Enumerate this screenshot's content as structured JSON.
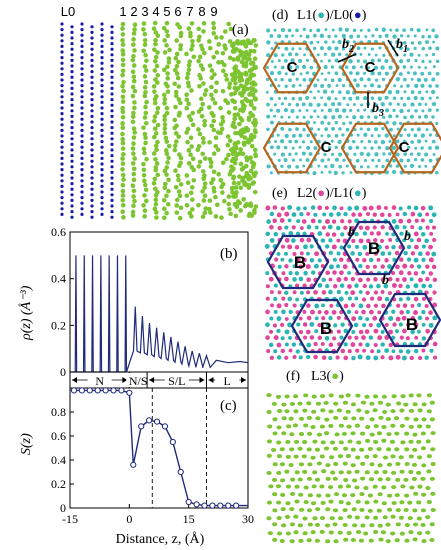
{
  "panel_a": {
    "tag": "(a)",
    "layer_labels": [
      "L0",
      "1",
      "2",
      "3",
      "4",
      "5",
      "6",
      "7",
      "8",
      "9"
    ],
    "colors": {
      "substrate": "#1a1aa8",
      "liquid": "#7cc531"
    }
  },
  "panel_d": {
    "tag": "(d)",
    "title_parts": [
      "L1(",
      ")/L0(",
      ")"
    ],
    "marker_colors": [
      "#2ab5b5",
      "#1a1aa8"
    ],
    "region_label": "C",
    "vectors": [
      "b",
      "b",
      "b"
    ],
    "vector_subs": [
      "2",
      "1",
      "3"
    ],
    "colors": {
      "atoms": "#2ab5b5",
      "outline": "#b5651d"
    }
  },
  "panel_e": {
    "tag": "(e)",
    "title_parts": [
      "L2(",
      ")/L1(",
      ")"
    ],
    "marker_colors": [
      "#e0479a",
      "#2ab5b5"
    ],
    "region_label": "B",
    "vectors": [
      "b",
      "b",
      "b"
    ],
    "colors": {
      "atoms_a": "#e0479a",
      "atoms_b": "#2ab5b5",
      "outline": "#1f2a7a",
      "vector": "#e07b1a"
    }
  },
  "panel_f": {
    "tag": "(f)",
    "title": "L3(",
    "title_end": ")",
    "marker_color": "#7cc531"
  },
  "chart_data": [
    {
      "type": "line",
      "tag": "(b)",
      "ylabel": "ρ(z) (Å⁻³)",
      "ylim": [
        0,
        0.6
      ],
      "yticks": [
        "0",
        "0.2",
        "0.4",
        "0.6"
      ],
      "xlim": [
        -15,
        30
      ],
      "color": "#1f2a7a",
      "peaks": {
        "z": [
          -13.5,
          -11.4,
          -9.3,
          -7.2,
          -5.1,
          -3.0,
          -0.9,
          1.5,
          3.3,
          5.1,
          6.9,
          8.7,
          10.5,
          12.3,
          14.1,
          15.9,
          17.7,
          19.5
        ],
        "height": [
          0.5,
          0.5,
          0.5,
          0.5,
          0.5,
          0.5,
          0.5,
          0.28,
          0.24,
          0.21,
          0.19,
          0.17,
          0.15,
          0.13,
          0.11,
          0.09,
          0.08,
          0.07
        ]
      },
      "baseline_tail": 0.04
    },
    {
      "type": "line",
      "tag": "(c)",
      "ylabel": "S(z)",
      "xlabel": "Distance, z, (Å)",
      "xlim": [
        -15,
        30
      ],
      "ylim": [
        0,
        1.0
      ],
      "yticks": [
        "0",
        "0.2",
        "0.4",
        "0.6",
        "0.8"
      ],
      "xticks": [
        "-15",
        "0",
        "15",
        "30"
      ],
      "color": "#1f2a7a",
      "region_labels": [
        "N",
        "N/S",
        "S/L",
        "L"
      ],
      "region_bounds": [
        -15,
        0,
        4.5,
        19.5,
        30
      ],
      "dashed_lines_x": [
        5.8,
        19.5
      ],
      "points": {
        "z": [
          -14,
          -12,
          -10,
          -8,
          -6,
          -4,
          -2,
          0,
          1,
          3,
          5,
          7,
          9,
          11,
          13,
          15,
          17,
          19,
          21,
          23,
          25,
          27
        ],
        "s": [
          0.98,
          0.98,
          0.98,
          0.98,
          0.98,
          0.98,
          0.98,
          0.96,
          0.36,
          0.68,
          0.73,
          0.72,
          0.68,
          0.55,
          0.3,
          0.05,
          0.03,
          0.02,
          0.02,
          0.02,
          0.02,
          0.02
        ]
      }
    }
  ]
}
